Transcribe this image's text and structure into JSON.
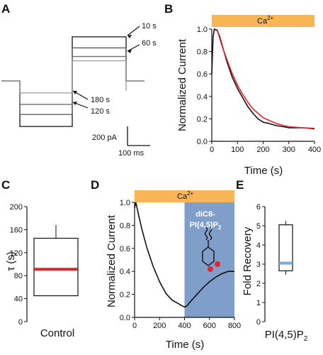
{
  "panels": [
    "A",
    "B",
    "C",
    "D",
    "E"
  ],
  "panel_a": {
    "labels_10s": "10 s",
    "labels_60s": "60 s",
    "labels_180s": "180 s",
    "labels_120s": "120 s",
    "scale_current": "200 pA",
    "scale_time": "100 ms"
  },
  "panel_b": {
    "bar_label": "Ca",
    "bar_sup": "2+",
    "ylabel": "Normalized Current",
    "xlabel": "Time (s)"
  },
  "panel_c": {
    "ylabel": "τ (s)",
    "xlabel": "Control"
  },
  "panel_d": {
    "bar_label": "Ca",
    "bar_sup": "2+",
    "ylabel": "Normalized Current",
    "xlabel": "Time (s)",
    "shade_line1": "diC8-",
    "shade_line2": "PI(4,5)P",
    "shade_sub": "2"
  },
  "panel_e": {
    "ylabel": "Fold Recovery",
    "xlabel": "PI(4,5)P",
    "xlabel_sub": "2"
  },
  "colors": {
    "ca_bar": "#f7b556",
    "fit_line": "#e8212b",
    "median_c": "#d42a2a",
    "median_e": "#7fa9d4",
    "shade": "#7f9ec9",
    "trace": "#111111"
  },
  "chart_data": [
    {
      "panel": "A",
      "type": "line",
      "x_units": "ms",
      "y_units": "pA",
      "series": [
        {
          "name": "10 s",
          "plateau_pos": 460,
          "plateau_neg": -475
        },
        {
          "name": "60 s",
          "plateau_pos": 345,
          "plateau_neg": -350
        },
        {
          "name": "120 s",
          "plateau_pos": 255,
          "plateau_neg": -245
        },
        {
          "name": "180 s",
          "plateau_pos": 210,
          "plateau_neg": -125
        }
      ],
      "scale_bars": {
        "current_pA": 200,
        "time_ms": 100
      }
    },
    {
      "panel": "B",
      "type": "line",
      "xlabel": "Time (s)",
      "ylabel": "Normalized Current",
      "xlim": [
        0,
        400
      ],
      "ylim": [
        0,
        1
      ],
      "xticks": [
        0,
        100,
        200,
        300,
        400
      ],
      "yticks": [
        0.0,
        0.2,
        0.4,
        0.6,
        0.8,
        1.0
      ],
      "series": [
        {
          "x": [
            0,
            5,
            10,
            20,
            30,
            40,
            50,
            60,
            80,
            100,
            120,
            140,
            160,
            180,
            200,
            220,
            250,
            280,
            300,
            330,
            360,
            400
          ],
          "y": [
            0.6,
            0.93,
            1.0,
            0.99,
            0.94,
            0.86,
            0.78,
            0.7,
            0.57,
            0.47,
            0.39,
            0.31,
            0.25,
            0.2,
            0.17,
            0.16,
            0.14,
            0.13,
            0.12,
            0.12,
            0.12,
            0.11
          ]
        },
        {
          "x": [
            20,
            40,
            60,
            80,
            100,
            120,
            140,
            160,
            180,
            200,
            220,
            250,
            280,
            300,
            330,
            360,
            400
          ],
          "y": [
            1.0,
            0.85,
            0.72,
            0.6,
            0.5,
            0.42,
            0.35,
            0.29,
            0.25,
            0.21,
            0.19,
            0.16,
            0.14,
            0.13,
            0.125,
            0.12,
            0.115
          ]
        }
      ],
      "annotations": [
        "Ca2+ bar over 20–400 s"
      ]
    },
    {
      "panel": "C",
      "type": "box",
      "ylabel": "τ (s)",
      "ylim": [
        0,
        200
      ],
      "yticks": [
        0,
        40,
        80,
        120,
        160,
        200
      ],
      "categories": [
        "Control"
      ],
      "box": {
        "whisker_low": 45,
        "q1": 45,
        "median": 91,
        "q3": 145,
        "whisker_high": 168
      }
    },
    {
      "panel": "D",
      "type": "line",
      "xlabel": "Time (s)",
      "ylabel": "Normalized Current",
      "xlim": [
        0,
        800
      ],
      "ylim": [
        0,
        1
      ],
      "xticks": [
        0,
        200,
        400,
        600,
        800
      ],
      "yticks": [
        0.0,
        0.2,
        0.4,
        0.6,
        0.8,
        1.0
      ],
      "series": [
        {
          "x": [
            0,
            10,
            30,
            60,
            100,
            150,
            200,
            250,
            300,
            350,
            380,
            400,
            420,
            450,
            500,
            550,
            600,
            650,
            700,
            750,
            800
          ],
          "y": [
            0.95,
            1.0,
            0.9,
            0.76,
            0.6,
            0.44,
            0.31,
            0.21,
            0.15,
            0.12,
            0.1,
            0.09,
            0.1,
            0.14,
            0.2,
            0.26,
            0.31,
            0.35,
            0.38,
            0.4,
            0.4
          ]
        }
      ],
      "shaded_region": [
        400,
        800
      ]
    },
    {
      "panel": "E",
      "type": "box",
      "ylabel": "Fold Recovery",
      "ylim": [
        0,
        6
      ],
      "yticks": [
        0,
        1,
        2,
        3,
        4,
        5,
        6
      ],
      "categories": [
        "PI(4,5)P2"
      ],
      "box": {
        "whisker_low": 2.45,
        "q1": 2.65,
        "median": 3.05,
        "q3": 5.05,
        "whisker_high": 5.25
      }
    }
  ]
}
